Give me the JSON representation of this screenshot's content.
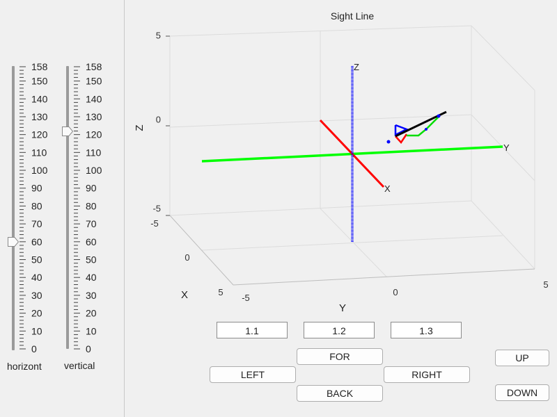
{
  "sliders": [
    {
      "caption": "horizont",
      "value": 60,
      "min": 0,
      "max": 158
    },
    {
      "caption": "vertical",
      "value": 122,
      "min": 0,
      "max": 158
    }
  ],
  "tick_labels": [
    "0",
    "10",
    "20",
    "30",
    "40",
    "50",
    "60",
    "70",
    "80",
    "90",
    "100",
    "110",
    "120",
    "130",
    "140",
    "150",
    "158"
  ],
  "plot": {
    "title": "Sight Line",
    "x_label": "X",
    "y_label": "Y",
    "z_label": "Z",
    "z_ticks": [
      "5",
      "0",
      "-5"
    ],
    "x_ticks": [
      "-5",
      "0",
      "5"
    ],
    "y_ticks": [
      "-5",
      "0",
      "5"
    ],
    "axis_labels": {
      "x": "X",
      "y": "Y",
      "z": "Z"
    },
    "colors": {
      "x_axis": "#ff0000",
      "y_axis": "#00ff00",
      "z_axis": "#0000ff",
      "sight": "#000000"
    }
  },
  "fields": [
    "1.1",
    "1.2",
    "1.3"
  ],
  "buttons": {
    "for": "FOR",
    "left": "LEFT",
    "right": "RIGHT",
    "back": "BACK",
    "up": "UP",
    "down": "DOWN"
  }
}
